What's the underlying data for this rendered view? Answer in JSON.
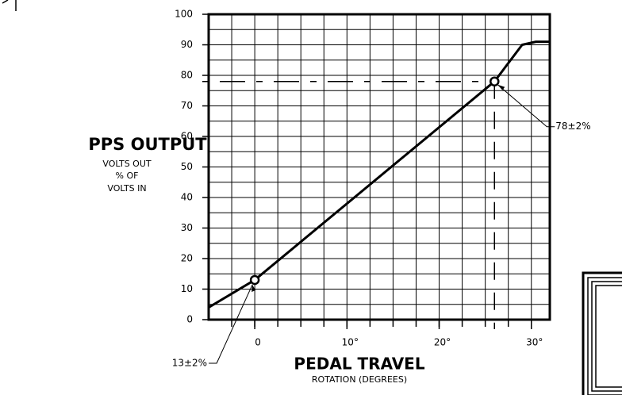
{
  "chart_data": {
    "type": "line",
    "y_label": "PPS OUTPUT",
    "y_sublabel": [
      "VOLTS OUT",
      "% OF",
      "VOLTS IN"
    ],
    "x_label": "PEDAL TRAVEL",
    "x_sublabel": "ROTATION (DEGREES)",
    "x": [
      -5,
      0,
      26,
      29,
      30.5,
      32
    ],
    "values": [
      4,
      13,
      78,
      90,
      91,
      91
    ],
    "color": "#000000",
    "xlim": [
      -5,
      32
    ],
    "ylim": [
      0,
      100
    ],
    "xticks": [
      0,
      {
        "value": 10,
        "label": "10°"
      },
      {
        "value": 20,
        "label": "20°"
      },
      {
        "value": 30,
        "label": "30°"
      }
    ],
    "yticks": [
      0,
      10,
      20,
      30,
      40,
      50,
      60,
      70,
      80,
      90,
      100
    ],
    "xgrid": [
      -2.5,
      0,
      2.5,
      5,
      7.5,
      10,
      12.5,
      15,
      17.5,
      20,
      22.5,
      25,
      27.5,
      30
    ],
    "ygrid": [
      5,
      10,
      15,
      20,
      25,
      30,
      35,
      40,
      45,
      50,
      55,
      60,
      65,
      70,
      75,
      80,
      85,
      90,
      95
    ],
    "grid": true,
    "annotations": [
      "13±2%",
      "78±2%"
    ]
  }
}
